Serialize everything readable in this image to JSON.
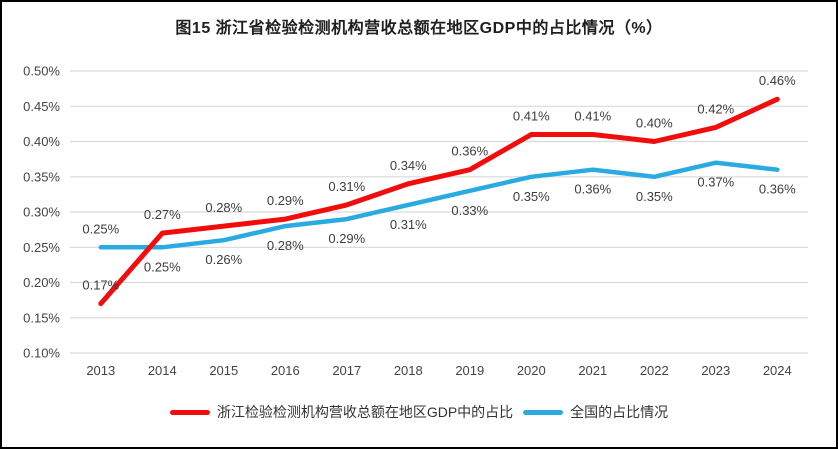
{
  "chart_data": {
    "type": "line",
    "title": "图15  浙江省检验检测机构营收总额在地区GDP中的占比情况（%）",
    "x": [
      "2013",
      "2014",
      "2015",
      "2016",
      "2017",
      "2018",
      "2019",
      "2020",
      "2021",
      "2022",
      "2023",
      "2024"
    ],
    "series": [
      {
        "name": "浙江检验检测机构营收总额在地区GDP中的占比",
        "color": "#F20D0D",
        "values": [
          0.17,
          0.27,
          0.28,
          0.29,
          0.31,
          0.34,
          0.36,
          0.41,
          0.41,
          0.4,
          0.42,
          0.46
        ],
        "labels": [
          "0.17%",
          "0.27%",
          "0.28%",
          "0.29%",
          "0.31%",
          "0.34%",
          "0.36%",
          "0.41%",
          "0.41%",
          "0.40%",
          "0.42%",
          "0.46%"
        ],
        "label_positions": [
          "above",
          "above",
          "above",
          "above",
          "above",
          "above",
          "above",
          "above",
          "above",
          "above",
          "above",
          "above"
        ]
      },
      {
        "name": "全国的占比情况",
        "color": "#29ABE2",
        "values": [
          0.25,
          0.25,
          0.26,
          0.28,
          0.29,
          0.31,
          0.33,
          0.35,
          0.36,
          0.35,
          0.37,
          0.36
        ],
        "labels": [
          "0.25%",
          "0.25%",
          "0.26%",
          "0.28%",
          "0.29%",
          "0.31%",
          "0.33%",
          "0.35%",
          "0.36%",
          "0.35%",
          "0.37%",
          "0.36%"
        ],
        "label_positions": [
          "above",
          "below",
          "below",
          "below",
          "below",
          "below",
          "below",
          "below",
          "below",
          "below",
          "below",
          "below"
        ]
      }
    ],
    "ylim": [
      0.1,
      0.5
    ],
    "yticks": [
      0.1,
      0.15,
      0.2,
      0.25,
      0.3,
      0.35,
      0.4,
      0.45,
      0.5
    ],
    "ytick_labels": [
      "0.10%",
      "0.15%",
      "0.20%",
      "0.25%",
      "0.30%",
      "0.35%",
      "0.40%",
      "0.45%",
      "0.50%"
    ],
    "grid": true,
    "legend_position": "bottom",
    "colors": {
      "gridline": "#D9D9D9",
      "axis_text": "#444444",
      "label_text": "#3D3D3D"
    }
  }
}
